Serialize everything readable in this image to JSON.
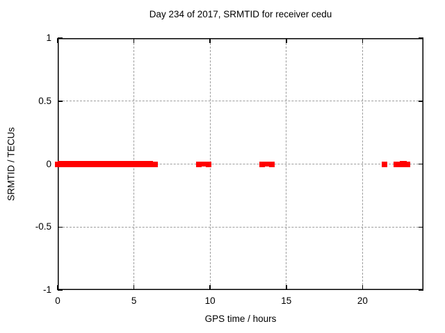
{
  "chart_data": {
    "type": "scatter",
    "title": "Day 234 of 2017, SRMTID for receiver cedu",
    "xlabel": "GPS time / hours",
    "ylabel": "SRMTID / TECUs",
    "xlim": [
      0,
      24
    ],
    "ylim": [
      -1,
      1
    ],
    "xticks": [
      {
        "v": 0,
        "label": "0"
      },
      {
        "v": 5,
        "label": "5"
      },
      {
        "v": 10,
        "label": "10"
      },
      {
        "v": 15,
        "label": "15"
      },
      {
        "v": 20,
        "label": "20"
      }
    ],
    "yticks": [
      {
        "v": 1,
        "label": "1"
      },
      {
        "v": 0.5,
        "label": "0.5"
      },
      {
        "v": 0,
        "label": "0"
      },
      {
        "v": -0.5,
        "label": "-0.5"
      },
      {
        "v": -1,
        "label": "-1"
      }
    ],
    "grid": true,
    "legend": "none",
    "marker": "+",
    "marker_color": "#ff0000",
    "grid_color": "#9c9c9c",
    "axis_color": "#000000",
    "series": [
      {
        "name": "SRMTID",
        "color": "#ff0000",
        "dense_segments": [
          {
            "x_start": 0.0,
            "x_end": 6.27,
            "y": 0,
            "y_spread": 0.026
          },
          {
            "x_start": 9.33,
            "x_end": 9.84,
            "y": 0,
            "y_spread": 0.022
          },
          {
            "x_start": 13.58,
            "x_end": 14.0,
            "y": 0,
            "y_spread": 0.022
          },
          {
            "x_start": 22.47,
            "x_end": 22.9,
            "y": 0,
            "y_spread": 0.025
          }
        ],
        "points": [
          {
            "x": 0.0,
            "y": 0
          },
          {
            "x": 6.4,
            "y": 0
          },
          {
            "x": 9.28,
            "y": 0
          },
          {
            "x": 9.9,
            "y": 0
          },
          {
            "x": 13.43,
            "y": 0
          },
          {
            "x": 14.05,
            "y": 0
          },
          {
            "x": 21.45,
            "y": 0
          },
          {
            "x": 22.2,
            "y": 0
          },
          {
            "x": 22.4,
            "y": 0
          },
          {
            "x": 22.95,
            "y": 0
          }
        ]
      }
    ]
  }
}
